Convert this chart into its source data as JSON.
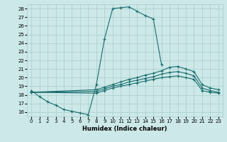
{
  "xlabel": "Humidex (Indice chaleur)",
  "ylabel": "",
  "xlim": [
    -0.5,
    23.5
  ],
  "ylim": [
    15.5,
    28.5
  ],
  "xticks": [
    0,
    1,
    2,
    3,
    4,
    5,
    6,
    7,
    8,
    9,
    10,
    11,
    12,
    13,
    14,
    15,
    16,
    17,
    18,
    19,
    20,
    21,
    22,
    23
  ],
  "yticks": [
    16,
    17,
    18,
    19,
    20,
    21,
    22,
    23,
    24,
    25,
    26,
    27,
    28
  ],
  "bg_color": "#cce8e8",
  "grid_color": "#aacccc",
  "line_color": "#1a6e6e",
  "curves": [
    {
      "x": [
        0,
        1,
        2,
        3,
        4,
        5,
        6,
        7,
        8,
        9,
        10,
        11,
        12,
        13,
        14,
        15,
        16
      ],
      "y": [
        18.5,
        17.8,
        17.2,
        16.8,
        16.3,
        16.1,
        15.9,
        15.7,
        19.2,
        24.5,
        28.0,
        28.1,
        28.2,
        27.7,
        27.2,
        26.8,
        21.5
      ]
    },
    {
      "x": [
        0,
        8,
        9,
        10,
        11,
        12,
        13,
        14,
        15,
        16,
        17,
        18,
        19,
        20,
        21,
        22,
        23
      ],
      "y": [
        18.3,
        18.6,
        18.9,
        19.2,
        19.5,
        19.8,
        20.0,
        20.3,
        20.5,
        20.8,
        21.2,
        21.3,
        21.0,
        20.7,
        19.2,
        18.8,
        18.6
      ]
    },
    {
      "x": [
        0,
        8,
        9,
        10,
        11,
        12,
        13,
        14,
        15,
        16,
        17,
        18,
        19,
        20,
        21,
        22,
        23
      ],
      "y": [
        18.3,
        18.4,
        18.7,
        19.0,
        19.2,
        19.5,
        19.7,
        19.9,
        20.1,
        20.4,
        20.6,
        20.7,
        20.5,
        20.2,
        18.8,
        18.5,
        18.3
      ]
    },
    {
      "x": [
        0,
        8,
        9,
        10,
        11,
        12,
        13,
        14,
        15,
        16,
        17,
        18,
        19,
        20,
        21,
        22,
        23
      ],
      "y": [
        18.3,
        18.2,
        18.5,
        18.8,
        19.0,
        19.2,
        19.4,
        19.6,
        19.8,
        20.0,
        20.1,
        20.2,
        20.0,
        19.8,
        18.5,
        18.3,
        18.2
      ]
    }
  ]
}
